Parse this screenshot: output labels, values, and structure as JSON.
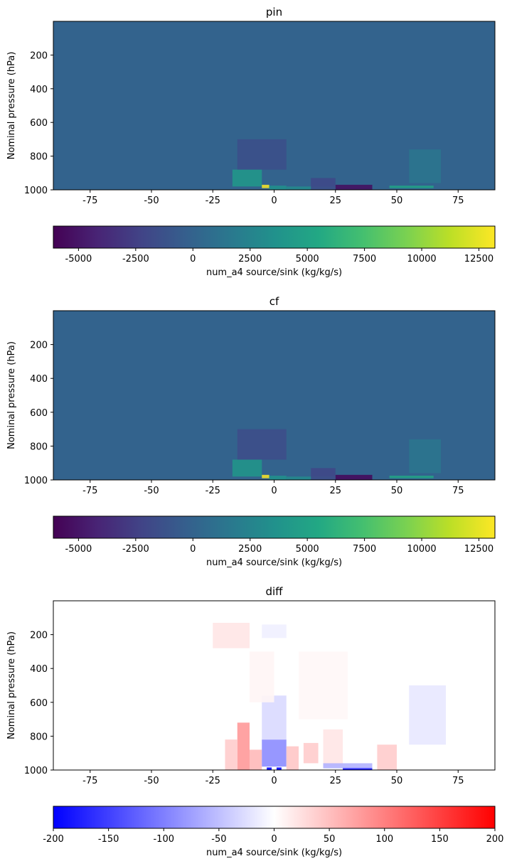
{
  "chart_data": [
    {
      "type": "heatmap",
      "title": "pin",
      "xlabel": "",
      "ylabel": "Nominal pressure (hPa)",
      "xlim": [
        -90,
        90
      ],
      "ylim": [
        1000,
        0
      ],
      "xticks": [
        -75,
        -50,
        -25,
        0,
        25,
        50,
        75
      ],
      "yticks": [
        200,
        400,
        600,
        800,
        1000
      ],
      "colormap": "viridis",
      "background_color": "#33638d",
      "colorbar": {
        "label": "num_a4 source/sink (kg/kg/s)",
        "range": [
          -6100,
          13200
        ],
        "ticks": [
          -5000,
          -2500,
          0,
          2500,
          5000,
          7500,
          10000,
          12500
        ]
      },
      "features": [
        {
          "lat": [
            -17,
            -5
          ],
          "p": [
            880,
            980
          ],
          "value": 4200
        },
        {
          "lat": [
            -5,
            -2
          ],
          "p": [
            970,
            990
          ],
          "value": 13200
        },
        {
          "lat": [
            -2,
            5
          ],
          "p": [
            975,
            1000
          ],
          "value": 3500
        },
        {
          "lat": [
            5,
            25
          ],
          "p": [
            980,
            1000
          ],
          "value": 3000
        },
        {
          "lat": [
            25,
            40
          ],
          "p": [
            970,
            1000
          ],
          "value": -5500
        },
        {
          "lat": [
            15,
            25
          ],
          "p": [
            930,
            1000
          ],
          "value": -2000
        },
        {
          "lat": [
            -15,
            5
          ],
          "p": [
            700,
            880
          ],
          "value": -1500
        },
        {
          "lat": [
            47,
            65
          ],
          "p": [
            975,
            990
          ],
          "value": 5000
        },
        {
          "lat": [
            55,
            68
          ],
          "p": [
            760,
            960
          ],
          "value": 1500
        }
      ]
    },
    {
      "type": "heatmap",
      "title": "cf",
      "xlabel": "",
      "ylabel": "Nominal pressure (hPa)",
      "xlim": [
        -90,
        90
      ],
      "ylim": [
        1000,
        0
      ],
      "xticks": [
        -75,
        -50,
        -25,
        0,
        25,
        50,
        75
      ],
      "yticks": [
        200,
        400,
        600,
        800,
        1000
      ],
      "colormap": "viridis",
      "background_color": "#33638d",
      "colorbar": {
        "label": "num_a4 source/sink (kg/kg/s)",
        "range": [
          -6100,
          13200
        ],
        "ticks": [
          -5000,
          -2500,
          0,
          2500,
          5000,
          7500,
          10000,
          12500
        ]
      },
      "features": [
        {
          "lat": [
            -17,
            -5
          ],
          "p": [
            880,
            980
          ],
          "value": 4000
        },
        {
          "lat": [
            -5,
            -2
          ],
          "p": [
            970,
            990
          ],
          "value": 13200
        },
        {
          "lat": [
            -2,
            5
          ],
          "p": [
            975,
            1000
          ],
          "value": 3600
        },
        {
          "lat": [
            5,
            25
          ],
          "p": [
            980,
            1000
          ],
          "value": 3000
        },
        {
          "lat": [
            25,
            40
          ],
          "p": [
            970,
            1000
          ],
          "value": -5800
        },
        {
          "lat": [
            15,
            25
          ],
          "p": [
            930,
            1000
          ],
          "value": -2200
        },
        {
          "lat": [
            -15,
            5
          ],
          "p": [
            700,
            880
          ],
          "value": -1700
        },
        {
          "lat": [
            47,
            65
          ],
          "p": [
            975,
            990
          ],
          "value": 5200
        },
        {
          "lat": [
            55,
            68
          ],
          "p": [
            760,
            960
          ],
          "value": 1500
        }
      ]
    },
    {
      "type": "heatmap",
      "title": "diff",
      "xlabel": "",
      "ylabel": "Nominal pressure (hPa)",
      "xlim": [
        -90,
        90
      ],
      "ylim": [
        1000,
        0
      ],
      "xticks": [
        -75,
        -50,
        -25,
        0,
        25,
        50,
        75
      ],
      "yticks": [
        200,
        400,
        600,
        800,
        1000
      ],
      "colormap": "bwr",
      "background_color": "#ffffff",
      "colorbar": {
        "label": "num_a4 source/sink (kg/kg/s)",
        "range": [
          -200,
          200
        ],
        "ticks": [
          -200,
          -150,
          -100,
          -50,
          0,
          50,
          100,
          150,
          200
        ]
      },
      "features": [
        {
          "lat": [
            -15,
            -10
          ],
          "p": [
            720,
            1000
          ],
          "value": 80
        },
        {
          "lat": [
            -20,
            -15
          ],
          "p": [
            820,
            1000
          ],
          "value": 40
        },
        {
          "lat": [
            -10,
            -5
          ],
          "p": [
            880,
            1000
          ],
          "value": 55
        },
        {
          "lat": [
            -5,
            5
          ],
          "p": [
            820,
            980
          ],
          "value": -90
        },
        {
          "lat": [
            -5,
            5
          ],
          "p": [
            560,
            820
          ],
          "value": -30
        },
        {
          "lat": [
            -3,
            -1
          ],
          "p": [
            985,
            1000
          ],
          "value": -200
        },
        {
          "lat": [
            1,
            3
          ],
          "p": [
            985,
            1000
          ],
          "value": -200
        },
        {
          "lat": [
            5,
            10
          ],
          "p": [
            860,
            1000
          ],
          "value": 45
        },
        {
          "lat": [
            12,
            18
          ],
          "p": [
            840,
            960
          ],
          "value": 40
        },
        {
          "lat": [
            20,
            28
          ],
          "p": [
            760,
            980
          ],
          "value": 20
        },
        {
          "lat": [
            28,
            40
          ],
          "p": [
            985,
            1000
          ],
          "value": -190
        },
        {
          "lat": [
            20,
            40
          ],
          "p": [
            960,
            990
          ],
          "value": -60
        },
        {
          "lat": [
            42,
            50
          ],
          "p": [
            850,
            1000
          ],
          "value": 40
        },
        {
          "lat": [
            55,
            70
          ],
          "p": [
            500,
            850
          ],
          "value": -18
        },
        {
          "lat": [
            -25,
            -10
          ],
          "p": [
            130,
            280
          ],
          "value": 20
        },
        {
          "lat": [
            -5,
            5
          ],
          "p": [
            140,
            220
          ],
          "value": -12
        },
        {
          "lat": [
            -10,
            0
          ],
          "p": [
            300,
            600
          ],
          "value": 8
        },
        {
          "lat": [
            10,
            30
          ],
          "p": [
            300,
            700
          ],
          "value": 6
        }
      ]
    }
  ]
}
